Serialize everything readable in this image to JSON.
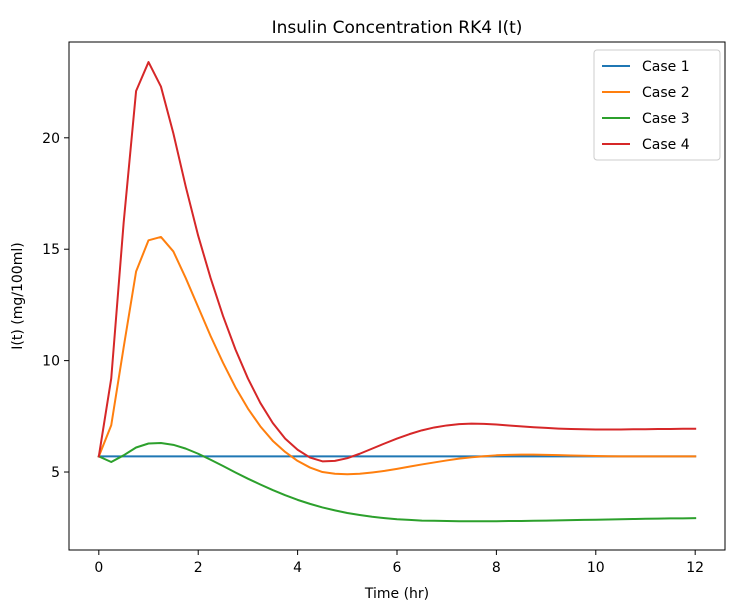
{
  "chart_data": {
    "type": "line",
    "title": "Insulin Concentration RK4 I(t)",
    "xlabel": "Time (hr)",
    "ylabel": "I(t) (mg/100ml)",
    "xlim": [
      -0.6,
      12.6
    ],
    "ylim": [
      1.5,
      24.3
    ],
    "xticks": [
      0,
      2,
      4,
      6,
      8,
      10,
      12
    ],
    "yticks": [
      5,
      10,
      15,
      20
    ],
    "grid": false,
    "legend_position": "top-right",
    "x": [
      0,
      0.25,
      0.5,
      0.75,
      1,
      1.25,
      1.5,
      1.75,
      2,
      2.25,
      2.5,
      2.75,
      3,
      3.25,
      3.5,
      3.75,
      4,
      4.25,
      4.5,
      4.75,
      5,
      5.25,
      5.5,
      5.75,
      6,
      6.25,
      6.5,
      6.75,
      7,
      7.25,
      7.5,
      7.75,
      8,
      8.25,
      8.5,
      8.75,
      9,
      9.25,
      9.5,
      9.75,
      10,
      10.25,
      10.5,
      10.75,
      11,
      11.25,
      11.5,
      11.75,
      12
    ],
    "series": [
      {
        "name": "Case 1",
        "color": "#1f77b4",
        "values": [
          5.7,
          5.7,
          5.7,
          5.7,
          5.7,
          5.7,
          5.7,
          5.7,
          5.7,
          5.7,
          5.7,
          5.7,
          5.7,
          5.7,
          5.7,
          5.7,
          5.7,
          5.7,
          5.7,
          5.7,
          5.7,
          5.7,
          5.7,
          5.7,
          5.7,
          5.7,
          5.7,
          5.7,
          5.7,
          5.7,
          5.7,
          5.7,
          5.7,
          5.7,
          5.7,
          5.7,
          5.7,
          5.7,
          5.7,
          5.7,
          5.7,
          5.7,
          5.7,
          5.7,
          5.7,
          5.7,
          5.7,
          5.7,
          5.7
        ]
      },
      {
        "name": "Case 2",
        "color": "#ff7f0e",
        "values": [
          5.7,
          7.1,
          10.6,
          14.0,
          15.4,
          15.55,
          14.9,
          13.7,
          12.4,
          11.1,
          9.9,
          8.8,
          7.85,
          7.05,
          6.4,
          5.9,
          5.5,
          5.2,
          5.0,
          4.92,
          4.9,
          4.92,
          4.98,
          5.05,
          5.14,
          5.24,
          5.34,
          5.43,
          5.52,
          5.6,
          5.66,
          5.71,
          5.75,
          5.77,
          5.78,
          5.78,
          5.77,
          5.76,
          5.74,
          5.73,
          5.72,
          5.71,
          5.7,
          5.7,
          5.7,
          5.7,
          5.7,
          5.7,
          5.7
        ]
      },
      {
        "name": "Case 3",
        "color": "#2ca02c",
        "values": [
          5.7,
          5.45,
          5.75,
          6.1,
          6.28,
          6.3,
          6.22,
          6.05,
          5.82,
          5.55,
          5.27,
          4.98,
          4.7,
          4.44,
          4.19,
          3.96,
          3.75,
          3.57,
          3.41,
          3.28,
          3.16,
          3.07,
          2.99,
          2.93,
          2.88,
          2.85,
          2.82,
          2.81,
          2.8,
          2.79,
          2.79,
          2.79,
          2.79,
          2.8,
          2.8,
          2.81,
          2.82,
          2.83,
          2.84,
          2.85,
          2.86,
          2.87,
          2.88,
          2.89,
          2.9,
          2.91,
          2.92,
          2.92,
          2.93
        ]
      },
      {
        "name": "Case 4",
        "color": "#d62728",
        "values": [
          5.7,
          9.2,
          16.2,
          22.1,
          23.4,
          22.3,
          20.2,
          17.8,
          15.6,
          13.7,
          12.0,
          10.5,
          9.2,
          8.1,
          7.2,
          6.5,
          6.0,
          5.65,
          5.48,
          5.5,
          5.62,
          5.82,
          6.05,
          6.28,
          6.5,
          6.7,
          6.87,
          7.0,
          7.09,
          7.15,
          7.17,
          7.16,
          7.13,
          7.09,
          7.05,
          7.01,
          6.98,
          6.95,
          6.93,
          6.92,
          6.91,
          6.91,
          6.91,
          6.92,
          6.92,
          6.93,
          6.93,
          6.94,
          6.94
        ]
      }
    ]
  }
}
